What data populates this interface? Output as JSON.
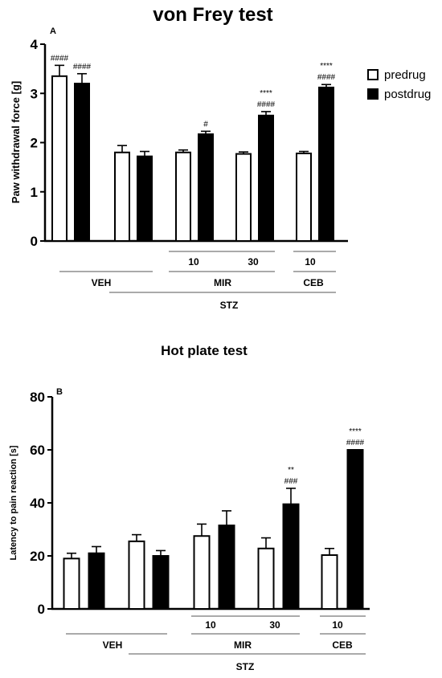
{
  "legend": {
    "items": [
      "predrug",
      "postdrug"
    ],
    "colors": [
      "#ffffff",
      "#000000"
    ]
  },
  "chart_data": [
    {
      "type": "bar",
      "panel_label": "A",
      "title": "von Frey test",
      "ylabel": "Paw withdrawal force [g]",
      "ylim": [
        0,
        4
      ],
      "yticks": [
        "0",
        "1",
        "2",
        "3",
        "4"
      ],
      "legend_position": "top-right",
      "series": [
        {
          "name": "predrug",
          "color": "#ffffff",
          "values": [
            3.35,
            1.8,
            1.8,
            1.77,
            1.78
          ],
          "errors": [
            0.22,
            0.14,
            0.05,
            0.04,
            0.04
          ]
        },
        {
          "name": "postdrug",
          "color": "#000000",
          "values": [
            3.2,
            1.72,
            2.17,
            2.55,
            3.12
          ],
          "errors": [
            0.2,
            0.1,
            0.06,
            0.08,
            0.06
          ]
        }
      ],
      "annotations": [
        {
          "bar": [
            0,
            0
          ],
          "lines": [
            "####"
          ]
        },
        {
          "bar": [
            1,
            0
          ],
          "lines": [
            "####"
          ]
        },
        {
          "bar": [
            1,
            2
          ],
          "lines": [
            "#"
          ]
        },
        {
          "bar": [
            1,
            3
          ],
          "lines": [
            "****",
            "####"
          ]
        },
        {
          "bar": [
            1,
            4
          ],
          "lines": [
            "****",
            "####"
          ]
        }
      ],
      "dose_labels": [
        "10",
        "30",
        "10"
      ],
      "group_labels": [
        "VEH",
        "MIR",
        "CEB"
      ],
      "outer_label": "STZ"
    },
    {
      "type": "bar",
      "panel_label": "B",
      "title": "Hot plate test",
      "ylabel": "Latency to pain reaction [s]",
      "ylim": [
        0,
        80
      ],
      "yticks": [
        "0",
        "20",
        "40",
        "60",
        "80"
      ],
      "series": [
        {
          "name": "predrug",
          "color": "#ffffff",
          "values": [
            19,
            25.5,
            27.5,
            22.8,
            20.3
          ],
          "errors": [
            2,
            2.5,
            4.5,
            4,
            2.5
          ]
        },
        {
          "name": "postdrug",
          "color": "#000000",
          "values": [
            21,
            20,
            31.5,
            39.5,
            60
          ],
          "errors": [
            2.5,
            2,
            5.5,
            6,
            0
          ]
        }
      ],
      "annotations": [
        {
          "bar": [
            1,
            3
          ],
          "lines": [
            "**",
            "###"
          ]
        },
        {
          "bar": [
            1,
            4
          ],
          "lines": [
            "****",
            "####"
          ]
        }
      ],
      "dose_labels": [
        "10",
        "30",
        "10"
      ],
      "group_labels": [
        "VEH",
        "MIR",
        "CEB"
      ],
      "outer_label": "STZ"
    }
  ]
}
